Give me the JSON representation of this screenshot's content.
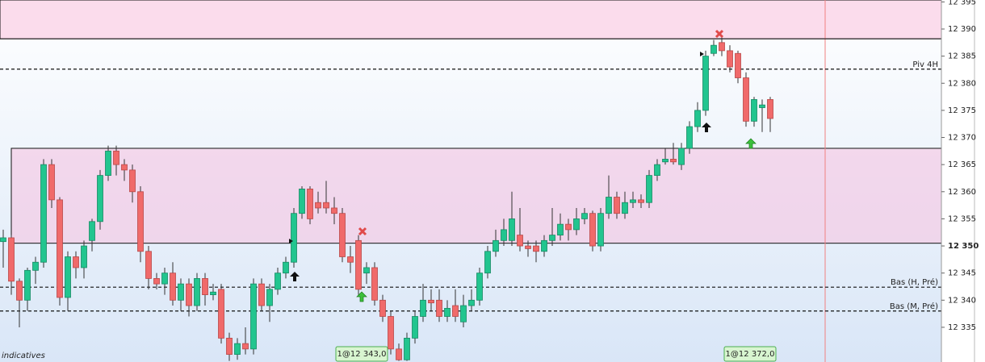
{
  "chart_data": {
    "type": "candlestick",
    "ylim": [
      12328.6,
      12395.35
    ],
    "yticks": [
      {
        "value": 12335,
        "label": "12 335"
      },
      {
        "value": 12340,
        "label": "12 340"
      },
      {
        "value": 12345,
        "label": "12 345"
      },
      {
        "value": 12350,
        "label": "12 350",
        "bold": true
      },
      {
        "value": 12355,
        "label": "12 355"
      },
      {
        "value": 12360,
        "label": "12 360"
      },
      {
        "value": 12365,
        "label": "12 365"
      },
      {
        "value": 12370,
        "label": "12 370"
      },
      {
        "value": 12375,
        "label": "12 375"
      },
      {
        "value": 12380,
        "label": "12 380"
      },
      {
        "value": 12385,
        "label": "12 385"
      },
      {
        "value": 12390,
        "label": "12 390"
      },
      {
        "value": 12395,
        "label": "12 395"
      }
    ],
    "up_color": "#22c58f",
    "down_color": "#f06a6a",
    "open": [
      12350.8,
      12351.5,
      12343.5,
      12340,
      12345.5,
      12347,
      12365,
      12358.5,
      12340.5,
      12348,
      12346,
      12351,
      12354.5,
      12363,
      12367.5,
      12365,
      12364,
      12360,
      12349,
      12344,
      12343,
      12345,
      12340,
      12343,
      12339,
      12344,
      12341,
      12342,
      12333,
      12330,
      12332,
      12331,
      12343,
      12339,
      12342,
      12345,
      12347,
      12356,
      12360.5,
      12358,
      12358,
      12357,
      12356,
      12348,
      12351,
      12345,
      12346,
      12340,
      12337,
      12331,
      12329,
      12333,
      12337,
      12340,
      12340,
      12337,
      12339,
      12336,
      12339,
      12340,
      12345,
      12349,
      12351,
      12351,
      12352,
      12350,
      12350,
      12349,
      12351,
      12352,
      12354,
      12353,
      12355,
      12356,
      12350,
      12356,
      12359,
      12356,
      12358,
      12358.5,
      12358,
      12363,
      12365.5,
      12366,
      12365,
      12368,
      12372,
      12375,
      12385.5,
      12387.5,
      12386,
      12385.5,
      12381,
      12373,
      12375.5,
      12377
    ],
    "high": [
      12353,
      12352,
      12344,
      12346,
      12348,
      12366,
      12366,
      12359,
      12349,
      12349,
      12351,
      12355,
      12364,
      12368.5,
      12368.5,
      12366,
      12365,
      12361,
      12350,
      12345,
      12346,
      12347,
      12344,
      12344,
      12345,
      12345,
      12343,
      12343,
      12334,
      12333,
      12335,
      12344,
      12344,
      12343,
      12346,
      12348,
      12357,
      12361,
      12361,
      12360,
      12362,
      12359,
      12357,
      12350,
      12352,
      12347,
      12347,
      12341,
      12338,
      12332,
      12334,
      12338,
      12343,
      12342,
      12342,
      12340,
      12342,
      12341,
      12342,
      12346,
      12350,
      12353,
      12355,
      12360,
      12357,
      12351,
      12351,
      12352,
      12357,
      12356,
      12355,
      12357,
      12357,
      12356.5,
      12357,
      12363,
      12360,
      12360,
      12360,
      12359.5,
      12364,
      12366,
      12368,
      12369,
      12369,
      12373,
      12376.5,
      12386,
      12388,
      12388.5,
      12387,
      12386,
      12382,
      12377.5,
      12377,
      12377.5
    ],
    "low": [
      12346,
      12341,
      12335,
      12338,
      12343,
      12346,
      12357,
      12339,
      12338,
      12344,
      12344,
      12349,
      12353,
      12362,
      12363,
      12362,
      12358,
      12347,
      12342,
      12342,
      12341,
      12339,
      12338,
      12337,
      12338,
      12339,
      12340,
      12332,
      12328.8,
      12329,
      12330,
      12330,
      12338,
      12336,
      12341,
      12344,
      12346,
      12355,
      12354,
      12356,
      12356,
      12354,
      12347,
      12345,
      12341,
      12343,
      12339,
      12336,
      12330,
      12328.8,
      12328.8,
      12332,
      12336,
      12338,
      12336,
      12336,
      12336,
      12335,
      12338,
      12339,
      12344,
      12348,
      12350,
      12350,
      12349,
      12348,
      12347,
      12348,
      12350,
      12351,
      12351,
      12352,
      12354,
      12349,
      12349,
      12355,
      12355,
      12355,
      12357,
      12357,
      12357,
      12362,
      12365,
      12365,
      12364,
      12367,
      12371,
      12374,
      12385,
      12385,
      12382,
      12380,
      12372,
      12372,
      12371,
      12371
    ],
    "close": [
      12351.5,
      12343.5,
      12340,
      12345.5,
      12347,
      12365,
      12358.5,
      12340.5,
      12348,
      12346,
      12350,
      12354.5,
      12363,
      12367.5,
      12365,
      12364,
      12360,
      12349,
      12344,
      12343,
      12345,
      12340,
      12343,
      12339,
      12344,
      12341,
      12341.5,
      12333,
      12330,
      12332,
      12331,
      12343,
      12339,
      12342,
      12345,
      12347,
      12356,
      12360.5,
      12355,
      12357,
      12357,
      12356,
      12348,
      12347,
      12342,
      12346,
      12340,
      12337,
      12331,
      12329,
      12333,
      12337,
      12340,
      12339.5,
      12337,
      12338.5,
      12337,
      12339,
      12340,
      12345,
      12349,
      12351,
      12353,
      12355,
      12350,
      12349.5,
      12349,
      12351,
      12352,
      12354,
      12353,
      12355,
      12356,
      12350,
      12356,
      12359,
      12356,
      12358,
      12358.5,
      12358,
      12363,
      12365,
      12366,
      12365.5,
      12368,
      12372,
      12375,
      12385,
      12387,
      12386,
      12383,
      12381,
      12373,
      12377,
      12376,
      12373.5
    ],
    "zones": [
      {
        "from": 12388.2,
        "to": 12395.35
      },
      {
        "from": 12350.5,
        "to": 12368
      }
    ],
    "levels": [
      {
        "value": 12388.2,
        "style": "solid"
      },
      {
        "value": 12382.6,
        "style": "dashed",
        "label": "Piv 4H"
      },
      {
        "value": 12342.4,
        "style": "dashed",
        "label": "Bas (H, Pré)"
      },
      {
        "value": 12338,
        "style": "dashed",
        "label": "Bas (M, Pré)"
      }
    ],
    "orders": [
      "1@12 343,0",
      "1@12 372,0"
    ],
    "note": "indicatives"
  }
}
